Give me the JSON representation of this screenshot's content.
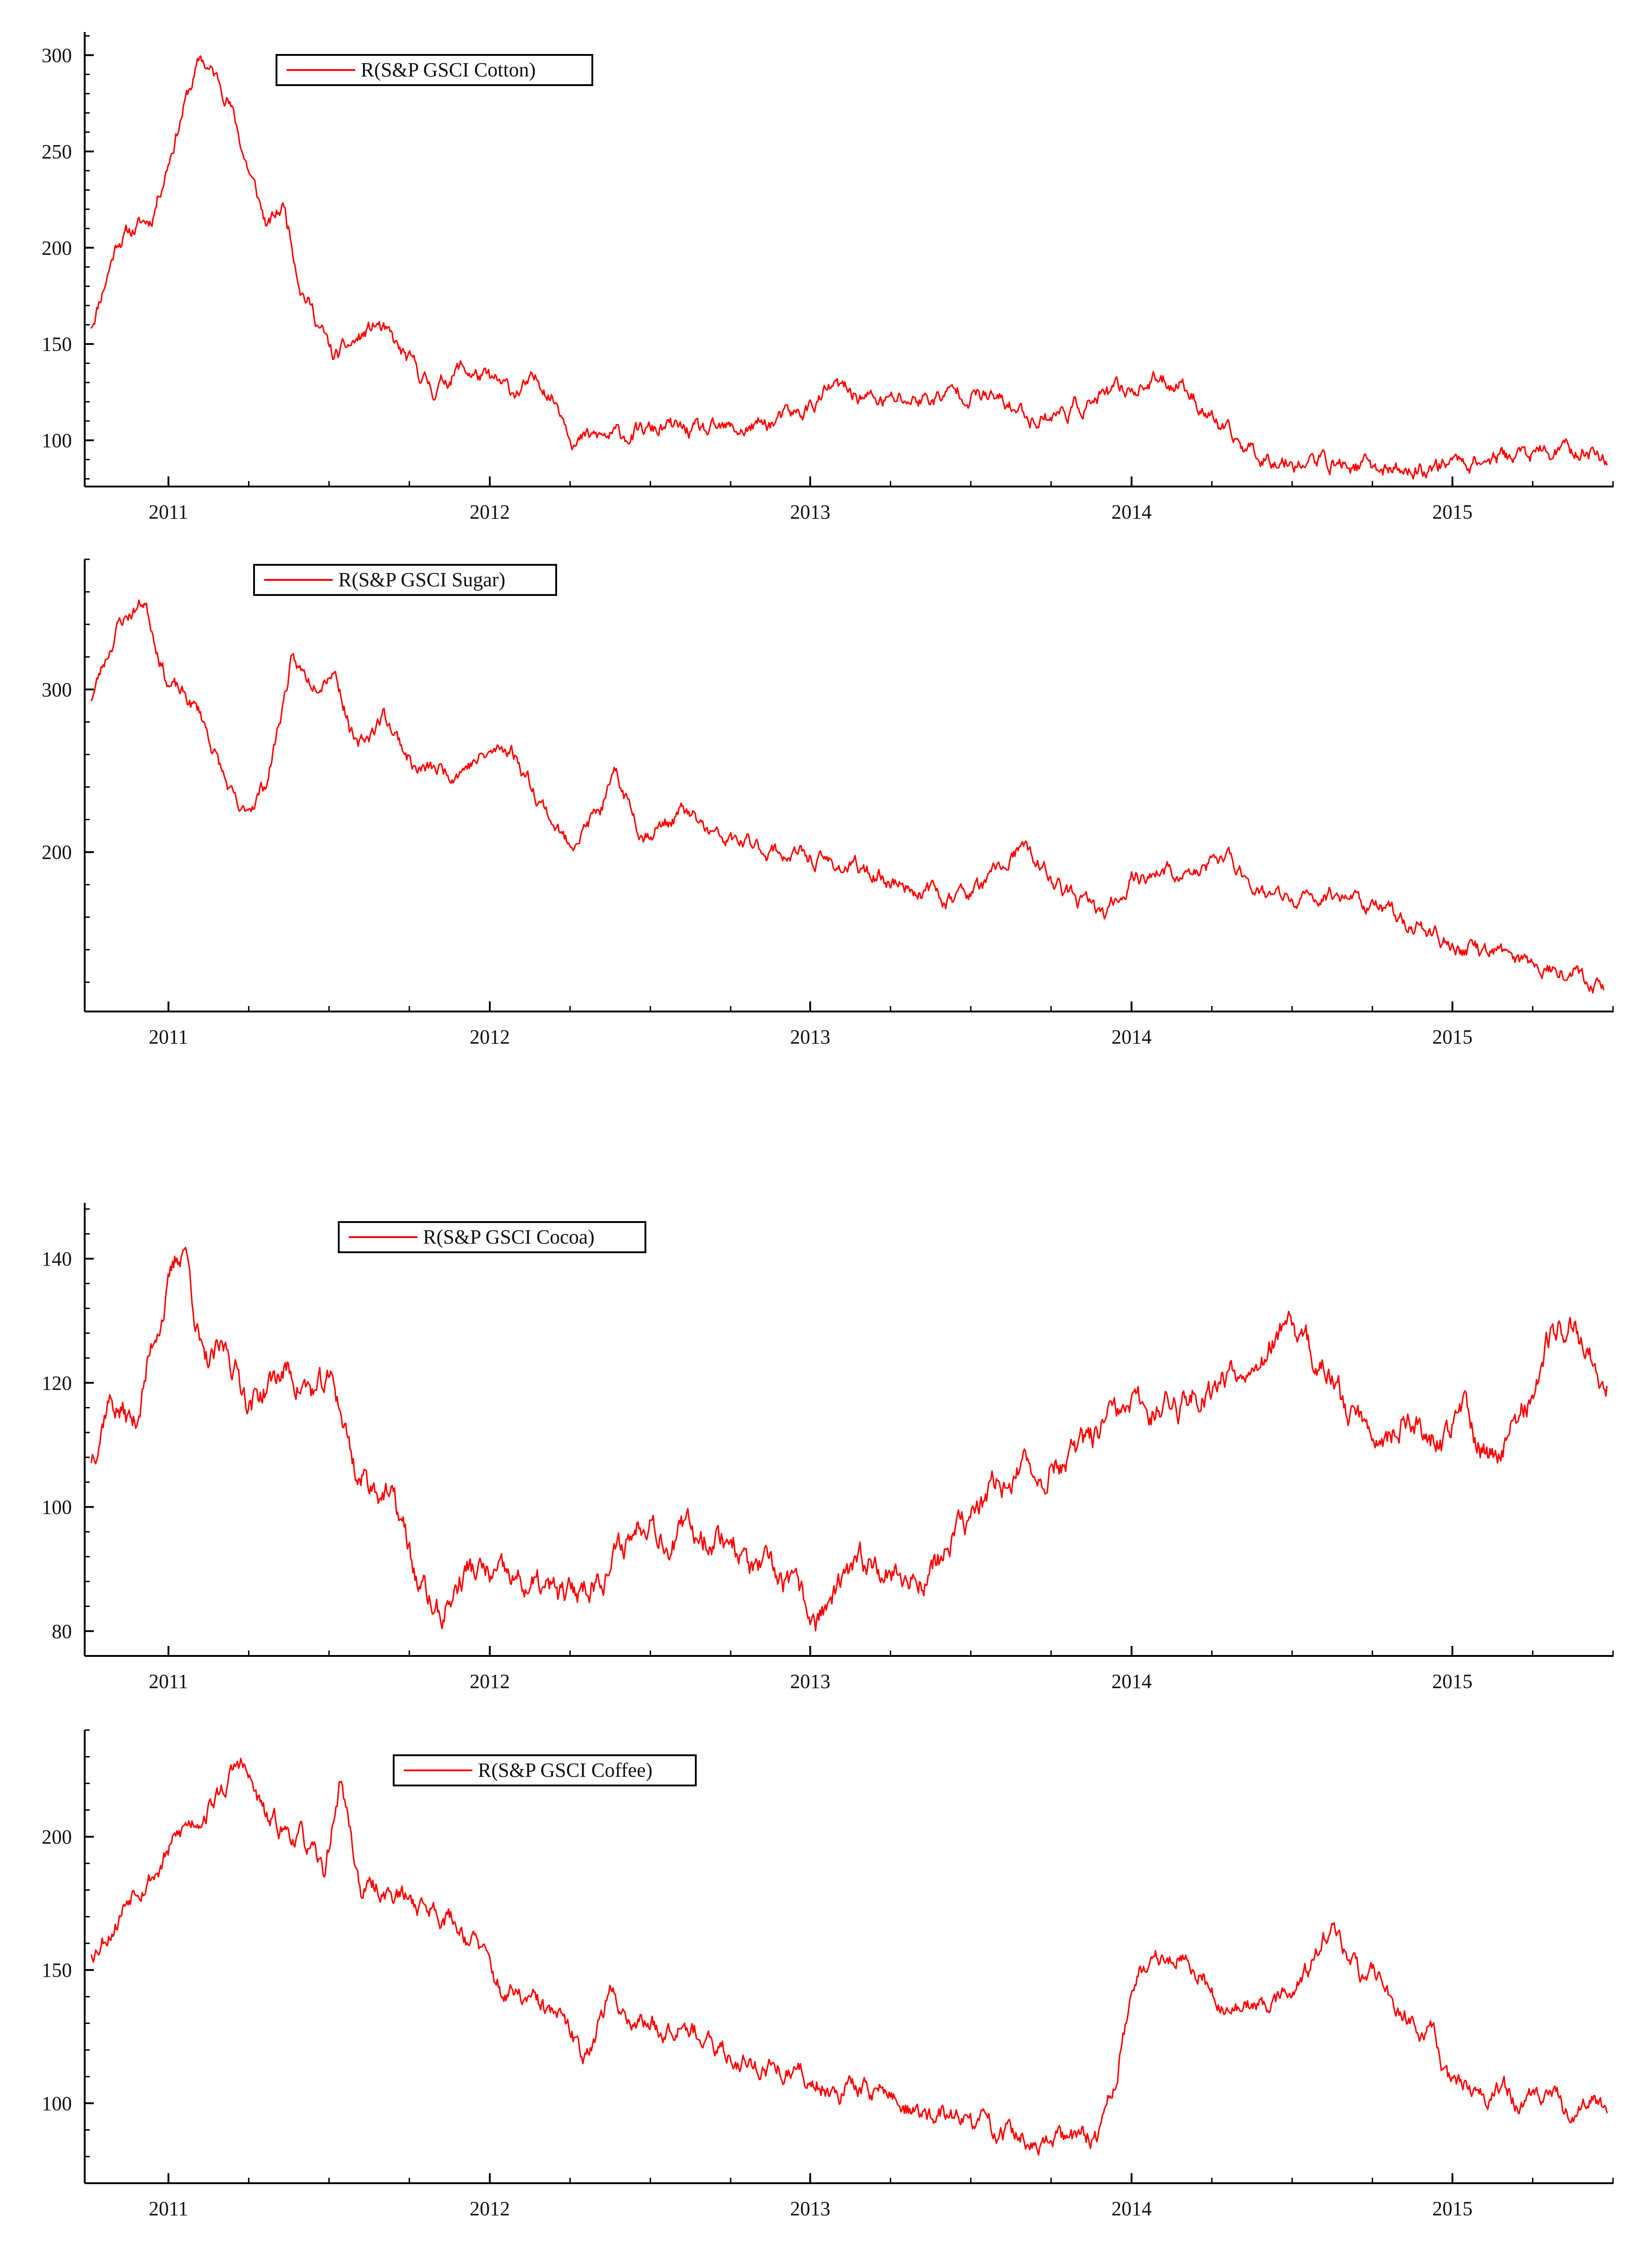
{
  "chart_data": [
    {
      "type": "line",
      "title": "",
      "xlabel": "",
      "ylabel": "",
      "xlim": [
        2010.9,
        2015.5
      ],
      "ylim": [
        76,
        312
      ],
      "x_ticks": [
        "2011",
        "2012",
        "2013",
        "2014",
        "2015"
      ],
      "y_ticks": [
        100,
        150,
        200,
        250,
        300
      ],
      "legend": "top-left",
      "series": [
        {
          "name": "R(S&P GSCI Cotton)",
          "color": "#ff0000",
          "seed": 11,
          "noise": 2.8,
          "points": [
            [
              2010.92,
              160
            ],
            [
              2011.0,
              205
            ],
            [
              2011.1,
              215
            ],
            [
              2011.2,
              275
            ],
            [
              2011.25,
              298
            ],
            [
              2011.33,
              280
            ],
            [
              2011.38,
              248
            ],
            [
              2011.45,
              210
            ],
            [
              2011.5,
              222
            ],
            [
              2011.55,
              182
            ],
            [
              2011.65,
              142
            ],
            [
              2011.78,
              160
            ],
            [
              2011.85,
              145
            ],
            [
              2011.95,
              126
            ],
            [
              2012.03,
              138
            ],
            [
              2012.18,
              125
            ],
            [
              2012.28,
              130
            ],
            [
              2012.33,
              118
            ],
            [
              2012.38,
              100
            ],
            [
              2012.5,
              102
            ],
            [
              2012.65,
              106
            ],
            [
              2012.78,
              103
            ],
            [
              2012.9,
              106
            ],
            [
              2013.05,
              113
            ],
            [
              2013.15,
              127
            ],
            [
              2013.3,
              120
            ],
            [
              2013.45,
              122
            ],
            [
              2013.55,
              126
            ],
            [
              2013.65,
              120
            ],
            [
              2013.75,
              112
            ],
            [
              2013.85,
              115
            ],
            [
              2014.0,
              124
            ],
            [
              2014.1,
              130
            ],
            [
              2014.2,
              131
            ],
            [
              2014.25,
              120
            ],
            [
              2014.35,
              100
            ],
            [
              2014.45,
              92
            ],
            [
              2014.6,
              89
            ],
            [
              2014.75,
              86
            ],
            [
              2014.9,
              84
            ],
            [
              2015.0,
              89
            ],
            [
              2015.15,
              91
            ],
            [
              2015.3,
              93
            ],
            [
              2015.42,
              95
            ],
            [
              2015.48,
              90
            ]
          ]
        }
      ]
    },
    {
      "type": "line",
      "title": "",
      "xlabel": "",
      "ylabel": "",
      "xlim": [
        2010.9,
        2015.5
      ],
      "ylim": [
        102,
        380
      ],
      "x_ticks": [
        "2011",
        "2012",
        "2013",
        "2014",
        "2015"
      ],
      "y_ticks": [
        200,
        300
      ],
      "legend": "top-left",
      "series": [
        {
          "name": "R(S&P GSCI Sugar)",
          "color": "#ff0000",
          "seed": 23,
          "noise": 3.2,
          "points": [
            [
              2010.92,
              295
            ],
            [
              2011.0,
              340
            ],
            [
              2011.08,
              355
            ],
            [
              2011.15,
              305
            ],
            [
              2011.25,
              285
            ],
            [
              2011.32,
              245
            ],
            [
              2011.37,
              220
            ],
            [
              2011.45,
              245
            ],
            [
              2011.52,
              315
            ],
            [
              2011.58,
              305
            ],
            [
              2011.65,
              315
            ],
            [
              2011.72,
              262
            ],
            [
              2011.8,
              285
            ],
            [
              2011.9,
              250
            ],
            [
              2012.0,
              250
            ],
            [
              2012.1,
              258
            ],
            [
              2012.18,
              265
            ],
            [
              2012.25,
              240
            ],
            [
              2012.35,
              205
            ],
            [
              2012.45,
              225
            ],
            [
              2012.5,
              245
            ],
            [
              2012.58,
              212
            ],
            [
              2012.65,
              218
            ],
            [
              2012.7,
              225
            ],
            [
              2012.8,
              208
            ],
            [
              2012.95,
              202
            ],
            [
              2013.1,
              195
            ],
            [
              2013.25,
              188
            ],
            [
              2013.4,
              178
            ],
            [
              2013.5,
              172
            ],
            [
              2013.6,
              178
            ],
            [
              2013.72,
              202
            ],
            [
              2013.85,
              175
            ],
            [
              2013.97,
              160
            ],
            [
              2014.05,
              185
            ],
            [
              2014.15,
              188
            ],
            [
              2014.25,
              186
            ],
            [
              2014.33,
              198
            ],
            [
              2014.45,
              175
            ],
            [
              2014.55,
              168
            ],
            [
              2014.68,
              176
            ],
            [
              2014.8,
              165
            ],
            [
              2014.95,
              150
            ],
            [
              2015.05,
              140
            ],
            [
              2015.15,
              138
            ],
            [
              2015.25,
              132
            ],
            [
              2015.38,
              128
            ],
            [
              2015.47,
              118
            ]
          ]
        }
      ]
    },
    {
      "type": "line",
      "title": "",
      "xlabel": "",
      "ylabel": "",
      "xlim": [
        2010.9,
        2015.5
      ],
      "ylim": [
        76,
        149
      ],
      "x_ticks": [
        "2011",
        "2012",
        "2013",
        "2014",
        "2015"
      ],
      "y_ticks": [
        80,
        100,
        120,
        140
      ],
      "legend": "top-left",
      "series": [
        {
          "name": "R(S&P GSCI Cocoa)",
          "color": "#ff0000",
          "seed": 37,
          "noise": 1.5,
          "points": [
            [
              2010.92,
              108
            ],
            [
              2010.97,
              118
            ],
            [
              2011.05,
              113
            ],
            [
              2011.12,
              130
            ],
            [
              2011.2,
              143
            ],
            [
              2011.26,
              122
            ],
            [
              2011.33,
              125
            ],
            [
              2011.4,
              117
            ],
            [
              2011.5,
              122
            ],
            [
              2011.6,
              118
            ],
            [
              2011.65,
              120
            ],
            [
              2011.72,
              105
            ],
            [
              2011.8,
              103
            ],
            [
              2011.85,
              98
            ],
            [
              2011.9,
              88
            ],
            [
              2011.97,
              82
            ],
            [
              2012.05,
              90
            ],
            [
              2012.15,
              88
            ],
            [
              2012.25,
              87
            ],
            [
              2012.35,
              85
            ],
            [
              2012.42,
              88
            ],
            [
              2012.5,
              92
            ],
            [
              2012.6,
              100
            ],
            [
              2012.65,
              95
            ],
            [
              2012.75,
              96
            ],
            [
              2012.85,
              95
            ],
            [
              2012.9,
              90
            ],
            [
              2013.0,
              88
            ],
            [
              2013.1,
              82
            ],
            [
              2013.2,
              88
            ],
            [
              2013.28,
              92
            ],
            [
              2013.38,
              88
            ],
            [
              2013.45,
              90
            ],
            [
              2013.55,
              97
            ],
            [
              2013.68,
              105
            ],
            [
              2013.78,
              106
            ],
            [
              2013.88,
              108
            ],
            [
              2014.0,
              114
            ],
            [
              2014.1,
              116
            ],
            [
              2014.2,
              117
            ],
            [
              2014.3,
              120
            ],
            [
              2014.45,
              126
            ],
            [
              2014.55,
              128
            ],
            [
              2014.6,
              124
            ],
            [
              2014.7,
              116
            ],
            [
              2014.8,
              112
            ],
            [
              2014.9,
              114
            ],
            [
              2014.98,
              110
            ],
            [
              2015.05,
              116
            ],
            [
              2015.12,
              108
            ],
            [
              2015.22,
              114
            ],
            [
              2015.3,
              126
            ],
            [
              2015.38,
              130
            ],
            [
              2015.45,
              122
            ],
            [
              2015.48,
              121
            ]
          ]
        }
      ]
    },
    {
      "type": "line",
      "title": "",
      "xlabel": "",
      "ylabel": "",
      "xlim": [
        2010.9,
        2015.5
      ],
      "ylim": [
        70,
        240
      ],
      "x_ticks": [
        "2011",
        "2012",
        "2013",
        "2014",
        "2015"
      ],
      "y_ticks": [
        100,
        150,
        200
      ],
      "legend": "top-left",
      "series": [
        {
          "name": "R(S&P GSCI Coffee)",
          "color": "#ff0000",
          "seed": 53,
          "noise": 2.6,
          "points": [
            [
              2010.92,
              157
            ],
            [
              2011.0,
              170
            ],
            [
              2011.05,
              183
            ],
            [
              2011.12,
              188
            ],
            [
              2011.2,
              203
            ],
            [
              2011.3,
              215
            ],
            [
              2011.37,
              228
            ],
            [
              2011.45,
              205
            ],
            [
              2011.55,
              200
            ],
            [
              2011.62,
              185
            ],
            [
              2011.67,
              222
            ],
            [
              2011.73,
              180
            ],
            [
              2011.8,
              180
            ],
            [
              2011.9,
              175
            ],
            [
              2011.98,
              172
            ],
            [
              2012.08,
              160
            ],
            [
              2012.15,
              142
            ],
            [
              2012.25,
              137
            ],
            [
              2012.32,
              132
            ],
            [
              2012.4,
              118
            ],
            [
              2012.48,
              140
            ],
            [
              2012.55,
              132
            ],
            [
              2012.65,
              128
            ],
            [
              2012.7,
              135
            ],
            [
              2012.78,
              120
            ],
            [
              2012.9,
              116
            ],
            [
              2013.0,
              112
            ],
            [
              2013.15,
              106
            ],
            [
              2013.3,
              105
            ],
            [
              2013.4,
              96
            ],
            [
              2013.55,
              94
            ],
            [
              2013.7,
              88
            ],
            [
              2013.78,
              82
            ],
            [
              2013.85,
              86
            ],
            [
              2013.95,
              88
            ],
            [
              2014.0,
              110
            ],
            [
              2014.07,
              150
            ],
            [
              2014.15,
              155
            ],
            [
              2014.22,
              158
            ],
            [
              2014.3,
              140
            ],
            [
              2014.4,
              135
            ],
            [
              2014.5,
              140
            ],
            [
              2014.58,
              150
            ],
            [
              2014.65,
              165
            ],
            [
              2014.72,
              150
            ],
            [
              2014.8,
              145
            ],
            [
              2014.88,
              135
            ],
            [
              2014.95,
              125
            ],
            [
              2015.02,
              105
            ],
            [
              2015.12,
              105
            ],
            [
              2015.25,
              100
            ],
            [
              2015.35,
              98
            ],
            [
              2015.43,
              102
            ],
            [
              2015.48,
              95
            ]
          ]
        }
      ]
    }
  ]
}
